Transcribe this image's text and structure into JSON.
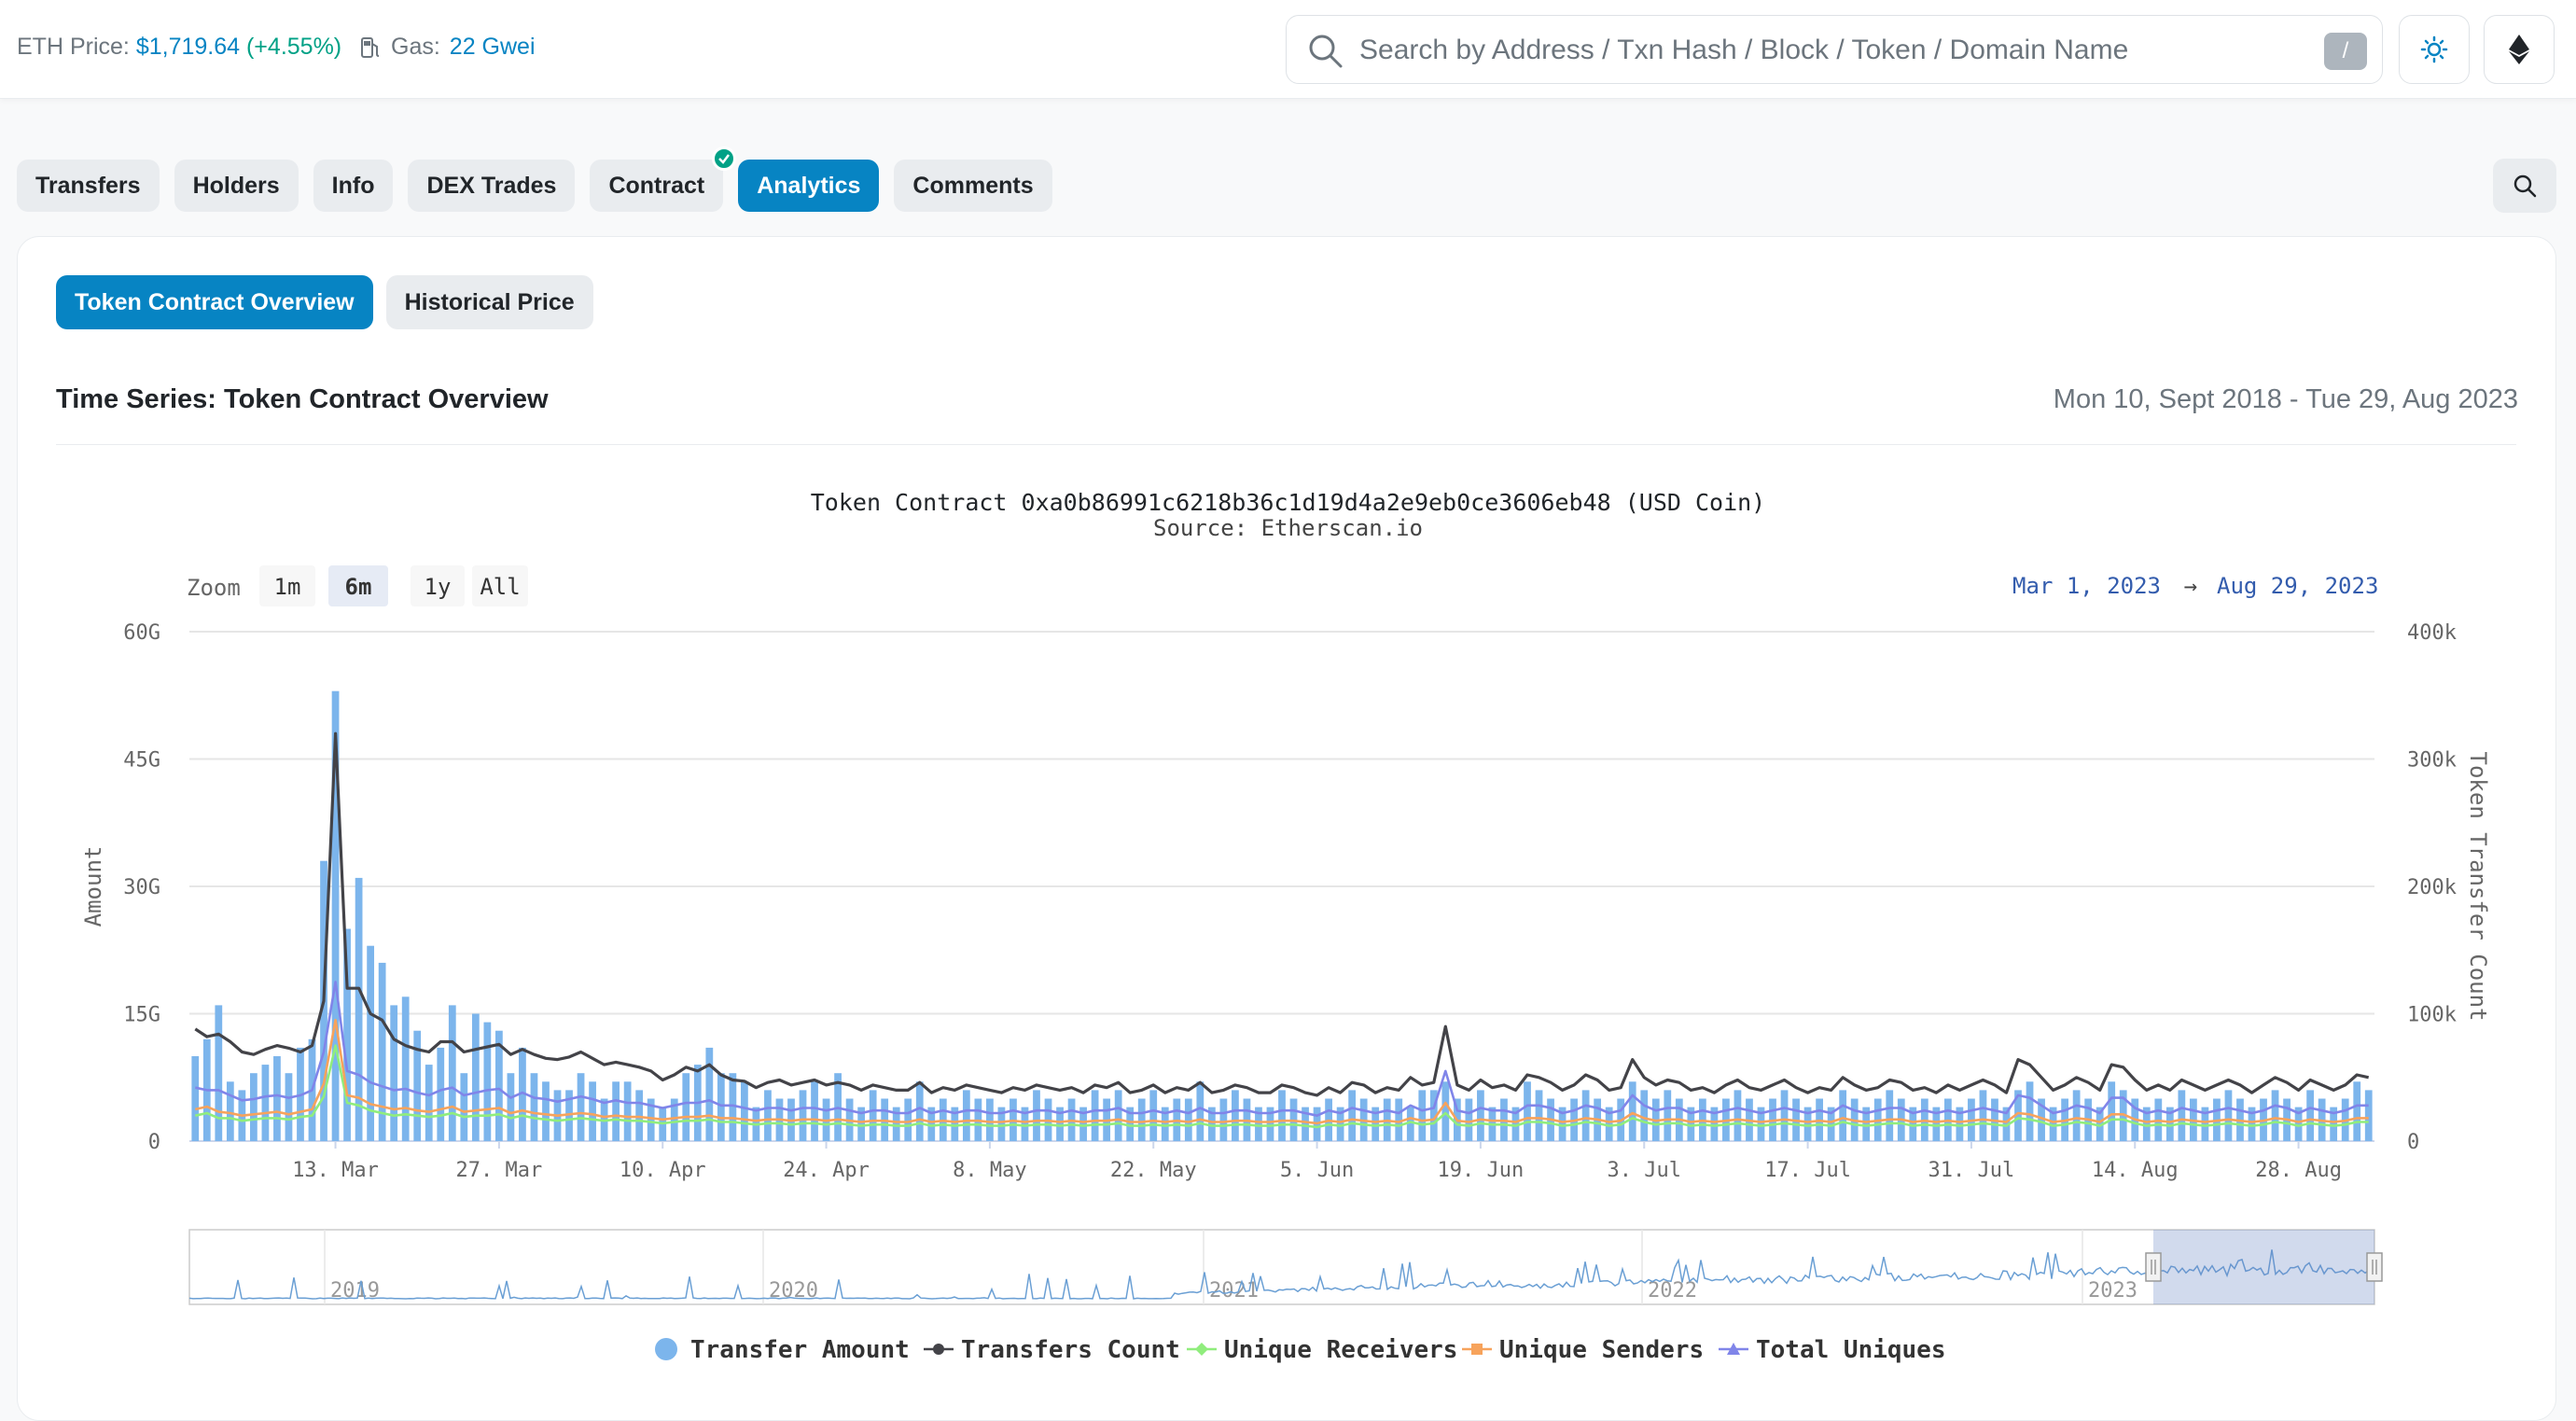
{
  "header": {
    "eth_label": "ETH Price:",
    "eth_price": "$1,719.64",
    "eth_change": "(+4.55%)",
    "gas_label": "Gas:",
    "gas_value": "22 Gwei",
    "search_placeholder": "Search by Address / Txn Hash / Block / Token / Domain Name",
    "search_shortcut": "/"
  },
  "tabs": [
    "Transfers",
    "Holders",
    "Info",
    "DEX Trades",
    "Contract",
    "Analytics",
    "Comments"
  ],
  "active_tab": "Analytics",
  "subtabs": [
    "Token Contract Overview",
    "Historical Price"
  ],
  "section": {
    "title": "Time Series: Token Contract Overview",
    "date_range": "Mon 10, Sept 2018 - Tue 29, Aug 2023"
  },
  "chart_data": {
    "type": "bar",
    "title": "Token Contract 0xa0b86991c6218b36c1d19d4a2e9eb0ce3606eb48 (USD Coin)",
    "subtitle": "Source: Etherscan.io",
    "zoom": {
      "label": "Zoom",
      "options": [
        "1m",
        "6m",
        "1y",
        "All"
      ],
      "selected": "6m"
    },
    "range": {
      "from": "Mar 1, 2023",
      "arrow": "→",
      "to": "Aug 29, 2023"
    },
    "y_left": {
      "label": "Amount",
      "ticks": [
        "0",
        "15G",
        "30G",
        "45G",
        "60G"
      ],
      "ylim": [
        0,
        60
      ]
    },
    "y_right": {
      "label": "Token Transfer Count",
      "ticks": [
        "0",
        "100k",
        "200k",
        "300k",
        "400k"
      ],
      "ylim": [
        0,
        400000
      ]
    },
    "x_ticks": [
      "13. Mar",
      "27. Mar",
      "10. Apr",
      "24. Apr",
      "8. May",
      "22. May",
      "5. Jun",
      "19. Jun",
      "3. Jul",
      "17. Jul",
      "31. Jul",
      "14. Aug",
      "28. Aug"
    ],
    "x_start": "2023-03-01",
    "navigator_ticks": [
      "2019",
      "2020",
      "2021",
      "2022",
      "2023"
    ],
    "legend": [
      {
        "name": "Transfer Amount",
        "color": "#7cb5ec",
        "marker": "circle"
      },
      {
        "name": "Transfers Count",
        "color": "#434348",
        "marker": "line-dot"
      },
      {
        "name": "Unique Receivers",
        "color": "#90ed7d",
        "marker": "line-diamond"
      },
      {
        "name": "Unique Senders",
        "color": "#f7a35c",
        "marker": "line-square"
      },
      {
        "name": "Total Uniques",
        "color": "#8085e9",
        "marker": "line-triangle"
      }
    ],
    "series": [
      {
        "name": "Transfer Amount",
        "unit": "G",
        "values": [
          10,
          12,
          16,
          7,
          6,
          8,
          9,
          10,
          8,
          11,
          12,
          33,
          53,
          25,
          31,
          23,
          21,
          16,
          17,
          13,
          9,
          11,
          16,
          8,
          15,
          14,
          13,
          8,
          11,
          8,
          7,
          6,
          6,
          8,
          7,
          5,
          7,
          7,
          6,
          5,
          4,
          5,
          8,
          9,
          11,
          8,
          8,
          7,
          4,
          6,
          5,
          5,
          6,
          7,
          5,
          8,
          5,
          4,
          6,
          5,
          4,
          5,
          7,
          4,
          5,
          4,
          6,
          5,
          5,
          4,
          5,
          4,
          6,
          5,
          4,
          5,
          4,
          6,
          5,
          6,
          4,
          5,
          6,
          4,
          5,
          5,
          7,
          4,
          5,
          6,
          5,
          4,
          4,
          6,
          5,
          4,
          4,
          5,
          4,
          6,
          5,
          4,
          5,
          5,
          4,
          6,
          6,
          7,
          5,
          5,
          6,
          4,
          5,
          4,
          7,
          6,
          5,
          4,
          5,
          6,
          5,
          4,
          5,
          7,
          6,
          5,
          6,
          5,
          4,
          5,
          4,
          5,
          6,
          5,
          4,
          5,
          6,
          5,
          4,
          5,
          4,
          6,
          5,
          4,
          5,
          6,
          5,
          4,
          5,
          4,
          5,
          4,
          5,
          6,
          5,
          4,
          6,
          7,
          5,
          4,
          5,
          6,
          5,
          4,
          7,
          6,
          5,
          4,
          5,
          4,
          6,
          5,
          4,
          5,
          6,
          5,
          4,
          5,
          6,
          5,
          4,
          6,
          5,
          4,
          5,
          7,
          6
        ]
      },
      {
        "name": "Transfers Count",
        "values": [
          88000,
          82000,
          84000,
          78000,
          70000,
          68000,
          72000,
          75000,
          73000,
          70000,
          75000,
          110000,
          320000,
          120000,
          120000,
          100000,
          95000,
          80000,
          75000,
          72000,
          70000,
          78000,
          78000,
          70000,
          72000,
          74000,
          76000,
          68000,
          72000,
          68000,
          65000,
          64000,
          66000,
          70000,
          65000,
          60000,
          62000,
          60000,
          58000,
          55000,
          48000,
          52000,
          58000,
          55000,
          60000,
          52000,
          48000,
          47000,
          42000,
          46000,
          48000,
          44000,
          46000,
          48000,
          44000,
          46000,
          44000,
          40000,
          44000,
          42000,
          40000,
          40000,
          46000,
          38000,
          42000,
          40000,
          44000,
          42000,
          40000,
          38000,
          42000,
          40000,
          44000,
          42000,
          40000,
          42000,
          38000,
          44000,
          42000,
          46000,
          38000,
          40000,
          44000,
          38000,
          42000,
          40000,
          46000,
          38000,
          40000,
          44000,
          42000,
          38000,
          38000,
          44000,
          42000,
          38000,
          36000,
          42000,
          38000,
          46000,
          44000,
          38000,
          42000,
          40000,
          50000,
          44000,
          46000,
          90000,
          44000,
          40000,
          48000,
          42000,
          44000,
          40000,
          52000,
          50000,
          46000,
          40000,
          44000,
          52000,
          48000,
          40000,
          42000,
          64000,
          50000,
          44000,
          48000,
          46000,
          40000,
          42000,
          38000,
          44000,
          48000,
          42000,
          40000,
          44000,
          48000,
          42000,
          38000,
          42000,
          40000,
          50000,
          44000,
          40000,
          42000,
          48000,
          46000,
          40000,
          42000,
          38000,
          44000,
          40000,
          44000,
          48000,
          44000,
          38000,
          64000,
          60000,
          50000,
          40000,
          44000,
          50000,
          46000,
          40000,
          60000,
          58000,
          48000,
          40000,
          44000,
          40000,
          48000,
          44000,
          40000,
          44000,
          48000,
          44000,
          38000,
          44000,
          50000,
          46000,
          40000,
          48000,
          44000,
          40000,
          44000,
          52000,
          50000
        ]
      },
      {
        "name": "Unique Receivers",
        "values": [
          20000,
          22000,
          18000,
          18000,
          16000,
          17000,
          18000,
          18000,
          17000,
          19000,
          20000,
          35000,
          75000,
          30000,
          28000,
          24000,
          22000,
          20000,
          21000,
          20000,
          19000,
          20000,
          22000,
          19000,
          20000,
          20000,
          21000,
          18000,
          20000,
          18000,
          17000,
          16000,
          17000,
          18000,
          17000,
          16000,
          17000,
          16000,
          16000,
          15000,
          14000,
          15000,
          16000,
          16000,
          17000,
          15000,
          15000,
          14000,
          13000,
          14000,
          14000,
          13000,
          14000,
          14000,
          13000,
          14000,
          13000,
          12000,
          13000,
          13000,
          12000,
          12000,
          14000,
          12000,
          13000,
          12000,
          13000,
          13000,
          12000,
          12000,
          13000,
          12000,
          13000,
          13000,
          12000,
          13000,
          12000,
          13000,
          13000,
          14000,
          12000,
          12000,
          13000,
          12000,
          13000,
          12000,
          14000,
          12000,
          12000,
          13000,
          13000,
          12000,
          12000,
          13000,
          13000,
          12000,
          11000,
          13000,
          12000,
          14000,
          13000,
          12000,
          13000,
          12000,
          15000,
          13000,
          14000,
          22000,
          13000,
          12000,
          14000,
          13000,
          13000,
          12000,
          15000,
          15000,
          14000,
          12000,
          13000,
          15000,
          14000,
          12000,
          13000,
          18000,
          15000,
          13000,
          14000,
          14000,
          12000,
          13000,
          12000,
          13000,
          14000,
          13000,
          12000,
          13000,
          14000,
          13000,
          12000,
          13000,
          12000,
          15000,
          13000,
          12000,
          13000,
          14000,
          14000,
          12000,
          13000,
          12000,
          13000,
          12000,
          13000,
          14000,
          13000,
          12000,
          18000,
          17000,
          15000,
          12000,
          13000,
          15000,
          14000,
          12000,
          17000,
          17000,
          14000,
          12000,
          13000,
          12000,
          14000,
          13000,
          12000,
          13000,
          14000,
          13000,
          12000,
          13000,
          15000,
          14000,
          12000,
          14000,
          13000,
          12000,
          13000,
          15000,
          15000
        ]
      },
      {
        "name": "Unique Senders",
        "values": [
          25000,
          27000,
          23000,
          22000,
          20000,
          21000,
          22000,
          23000,
          21000,
          23000,
          25000,
          45000,
          95000,
          36000,
          34000,
          29000,
          27000,
          25000,
          26000,
          24000,
          23000,
          25000,
          27000,
          23000,
          24000,
          25000,
          26000,
          22000,
          24000,
          22000,
          21000,
          20000,
          21000,
          22000,
          21000,
          19000,
          20000,
          19000,
          19000,
          18000,
          17000,
          18000,
          19000,
          19000,
          20000,
          18000,
          18000,
          17000,
          16000,
          17000,
          17000,
          16000,
          17000,
          17000,
          16000,
          17000,
          16000,
          15000,
          16000,
          16000,
          15000,
          15000,
          17000,
          15000,
          16000,
          15000,
          16000,
          16000,
          15000,
          15000,
          16000,
          15000,
          16000,
          16000,
          15000,
          16000,
          15000,
          16000,
          16000,
          17000,
          15000,
          15000,
          16000,
          15000,
          16000,
          15000,
          17000,
          15000,
          15000,
          16000,
          16000,
          15000,
          15000,
          16000,
          16000,
          15000,
          14000,
          16000,
          15000,
          17000,
          16000,
          15000,
          16000,
          15000,
          18000,
          16000,
          17000,
          30000,
          16000,
          15000,
          17000,
          16000,
          16000,
          15000,
          18000,
          18000,
          17000,
          15000,
          16000,
          18000,
          17000,
          15000,
          16000,
          22000,
          18000,
          16000,
          17000,
          17000,
          15000,
          16000,
          15000,
          16000,
          17000,
          16000,
          15000,
          16000,
          17000,
          16000,
          15000,
          16000,
          15000,
          18000,
          16000,
          15000,
          16000,
          17000,
          17000,
          15000,
          16000,
          15000,
          16000,
          15000,
          16000,
          17000,
          16000,
          15000,
          22000,
          21000,
          18000,
          15000,
          16000,
          18000,
          17000,
          15000,
          21000,
          21000,
          17000,
          15000,
          16000,
          15000,
          17000,
          16000,
          15000,
          16000,
          17000,
          16000,
          15000,
          16000,
          18000,
          17000,
          15000,
          17000,
          16000,
          15000,
          16000,
          18000,
          18000
        ]
      },
      {
        "name": "Total Uniques",
        "values": [
          42000,
          40000,
          40000,
          36000,
          32000,
          33000,
          35000,
          36000,
          34000,
          36000,
          40000,
          70000,
          125000,
          55000,
          52000,
          46000,
          43000,
          40000,
          41000,
          38000,
          36000,
          40000,
          42000,
          36000,
          38000,
          40000,
          41000,
          34000,
          38000,
          34000,
          33000,
          31000,
          33000,
          35000,
          33000,
          30000,
          32000,
          30000,
          30000,
          28000,
          26000,
          28000,
          30000,
          30000,
          32000,
          28000,
          28000,
          26000,
          24000,
          26000,
          26000,
          24000,
          26000,
          26000,
          24000,
          26000,
          24000,
          22000,
          24000,
          24000,
          22000,
          22000,
          26000,
          22000,
          24000,
          22000,
          24000,
          24000,
          22000,
          22000,
          24000,
          22000,
          24000,
          24000,
          22000,
          24000,
          22000,
          24000,
          24000,
          26000,
          22000,
          22000,
          24000,
          22000,
          24000,
          22000,
          26000,
          22000,
          22000,
          24000,
          24000,
          22000,
          22000,
          24000,
          24000,
          22000,
          20000,
          24000,
          22000,
          26000,
          24000,
          22000,
          24000,
          22000,
          28000,
          24000,
          26000,
          55000,
          24000,
          22000,
          26000,
          24000,
          24000,
          22000,
          28000,
          28000,
          26000,
          22000,
          24000,
          28000,
          26000,
          22000,
          24000,
          36000,
          28000,
          24000,
          26000,
          26000,
          22000,
          24000,
          22000,
          24000,
          26000,
          24000,
          22000,
          24000,
          26000,
          24000,
          22000,
          24000,
          22000,
          28000,
          24000,
          22000,
          24000,
          26000,
          26000,
          22000,
          24000,
          22000,
          24000,
          22000,
          24000,
          26000,
          24000,
          22000,
          36000,
          34000,
          28000,
          22000,
          24000,
          28000,
          26000,
          22000,
          34000,
          34000,
          26000,
          22000,
          24000,
          22000,
          26000,
          24000,
          22000,
          24000,
          26000,
          24000,
          22000,
          24000,
          28000,
          26000,
          22000,
          26000,
          24000,
          22000,
          24000,
          28000,
          28000
        ]
      }
    ]
  }
}
